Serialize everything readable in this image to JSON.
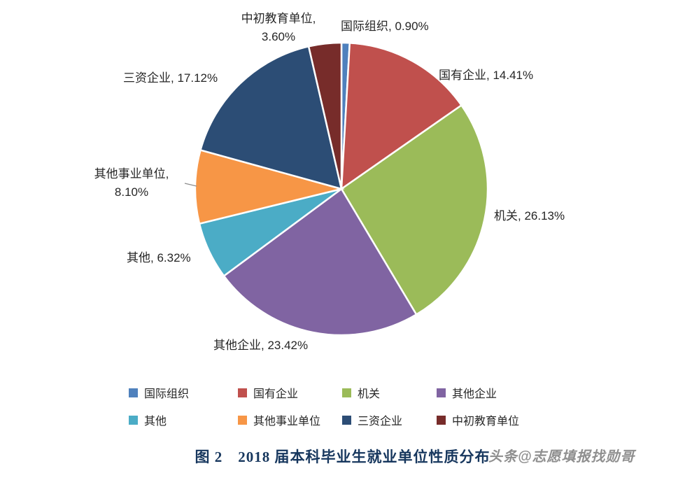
{
  "title": "图 2　2018 届本科毕业生就业单位性质分布",
  "watermark": "头条@志愿填报找勋哥",
  "chart_data": {
    "type": "pie",
    "title": "2018 届本科毕业生就业单位性质分布",
    "start_angle_deg": 0,
    "direction": "clockwise",
    "legend_position": "bottom",
    "segments": [
      {
        "name": "国际组织",
        "value": 0.9,
        "color": "#4F81BD",
        "label": "国际组织, 0.90%"
      },
      {
        "name": "国有企业",
        "value": 14.41,
        "color": "#C0504D",
        "label": "国有企业, 14.41%"
      },
      {
        "name": "机关",
        "value": 26.13,
        "color": "#9BBB59",
        "label": "机关, 26.13%"
      },
      {
        "name": "其他企业",
        "value": 23.42,
        "color": "#8064A2",
        "label": "其他企业, 23.42%"
      },
      {
        "name": "其他",
        "value": 6.32,
        "color": "#4BACC6",
        "label": "其他, 6.32%"
      },
      {
        "name": "其他事业单位",
        "value": 8.1,
        "color": "#F79646",
        "label": "其他事业单位,\n8.10%"
      },
      {
        "name": "三资企业",
        "value": 17.12,
        "color": "#2C4D75",
        "label": "三资企业, 17.12%"
      },
      {
        "name": "中初教育单位",
        "value": 3.6,
        "color": "#772C2A",
        "label": "中初教育单位,\n3.60%"
      }
    ]
  }
}
